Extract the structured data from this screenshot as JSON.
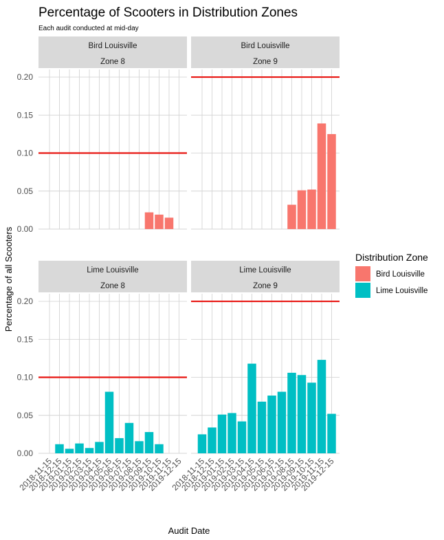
{
  "chart_data": {
    "type": "bar",
    "title": "Percentage of Scooters in Distribution Zones",
    "subtitle": "Each audit conducted at mid-day",
    "xlabel": "Audit Date",
    "ylabel": "Percentage of all Scooters",
    "ylim": [
      0,
      0.21
    ],
    "yticks": [
      0.0,
      0.05,
      0.1,
      0.15,
      0.2
    ],
    "ytick_labels": [
      "0.00",
      "0.05",
      "0.10",
      "0.15",
      "0.20"
    ],
    "categories": [
      "2018-11-15",
      "2018-12-15",
      "2019-01-15",
      "2019-02-15",
      "2019-03-15",
      "2019-04-15",
      "2019-05-15",
      "2019-06-15",
      "2019-07-15",
      "2019-08-15",
      "2019-09-15",
      "2019-10-15",
      "2019-11-15",
      "2019-12-15"
    ],
    "grid": true,
    "legend": {
      "title": "Distribution Zone",
      "placement": "right",
      "entries": [
        {
          "label": "Bird Louisville",
          "color": "#f8766d"
        },
        {
          "label": "Lime Louisville",
          "color": "#00bfc4"
        }
      ]
    },
    "panels": [
      {
        "provider": "Bird Louisville",
        "zone": "Zone 8",
        "color": "#f8766d",
        "reference": 0.1,
        "values": [
          null,
          null,
          null,
          null,
          null,
          null,
          null,
          null,
          null,
          null,
          0.022,
          0.019,
          0.015,
          null
        ]
      },
      {
        "provider": "Bird Louisville",
        "zone": "Zone 9",
        "color": "#f8766d",
        "reference": 0.2,
        "values": [
          null,
          null,
          null,
          null,
          null,
          null,
          null,
          null,
          null,
          0.032,
          0.051,
          0.052,
          0.139,
          0.125
        ]
      },
      {
        "provider": "Lime Louisville",
        "zone": "Zone 8",
        "color": "#00bfc4",
        "reference": 0.1,
        "values": [
          null,
          0.012,
          0.006,
          0.013,
          0.007,
          0.015,
          0.081,
          0.02,
          0.04,
          0.016,
          0.028,
          0.012,
          null,
          null
        ]
      },
      {
        "provider": "Lime Louisville",
        "zone": "Zone 9",
        "color": "#00bfc4",
        "reference": 0.2,
        "values": [
          0.025,
          0.034,
          0.051,
          0.053,
          0.042,
          0.118,
          0.068,
          0.076,
          0.081,
          0.106,
          0.103,
          0.093,
          0.123,
          0.052
        ]
      }
    ]
  }
}
